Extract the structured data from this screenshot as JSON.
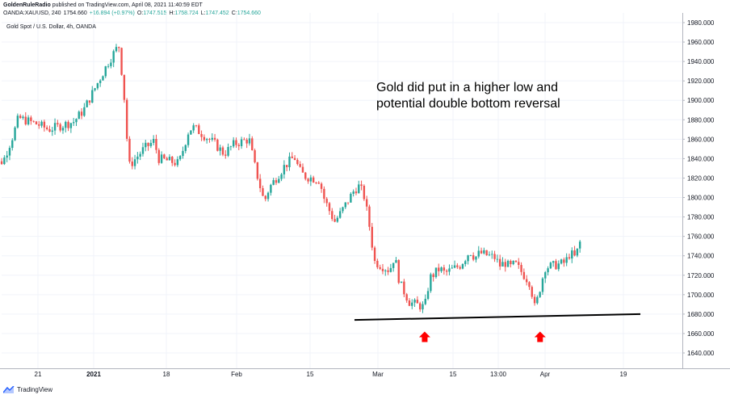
{
  "header": {
    "publisher": "GoldenRuleRadio",
    "published_text": "published on TradingView.com, April 08, 2021 11:40:59 EDT",
    "symbol": "OANDA:XAUUSD, 240",
    "last": "1754.660",
    "change": "+16.894 (+0.97%)",
    "o_label": "O:",
    "o_value": "1747.515",
    "h_label": "H:",
    "h_value": "1758.724",
    "l_label": "L:",
    "l_value": "1747.452",
    "c_label": "C:",
    "c_value": "1754.660"
  },
  "legend_name": "Gold Spot / U.S. Dollar, 4h, OANDA",
  "annotation": {
    "line1": "Gold did put in a higher low and",
    "line2": "potential double bottom reversal"
  },
  "footer": {
    "brand": "TradingView"
  },
  "colors": {
    "up": "#26a69a",
    "down": "#ef5350",
    "arrow": "#ff0000",
    "grid": "#f0f3fa",
    "axis_text": "#131722"
  },
  "chart_data": {
    "type": "candlestick",
    "ylim": [
      1634,
      1988
    ],
    "y_ticks": [
      1640,
      1660,
      1680,
      1700,
      1720,
      1740,
      1760,
      1780,
      1800,
      1820,
      1840,
      1860,
      1880,
      1900,
      1920,
      1940,
      1960,
      1980
    ],
    "y_tick_labels": [
      "1640.000",
      "1660.000",
      "1680.000",
      "1700.000",
      "1720.000",
      "1740.000",
      "1760.000",
      "1780.000",
      "1800.000",
      "1820.000",
      "1840.000",
      "1860.000",
      "1880.000",
      "1900.000",
      "1920.000",
      "1940.000",
      "1960.000",
      "1980.000"
    ],
    "x_tick_labels": [
      "21",
      "2021",
      "18",
      "Feb",
      "15",
      "Mar",
      "15",
      "13:00",
      "Apr",
      "19"
    ],
    "x_tick_bold": [
      false,
      true,
      false,
      false,
      false,
      false,
      false,
      false,
      false,
      false
    ],
    "close_path": [
      [
        "2020-12-11",
        1830
      ],
      [
        "2020-12-14",
        1838
      ],
      [
        "2020-12-16",
        1865
      ],
      [
        "2020-12-17",
        1882
      ],
      [
        "2020-12-21",
        1875
      ],
      [
        "2020-12-23",
        1870
      ],
      [
        "2020-12-28",
        1878
      ],
      [
        "2020-12-30",
        1890
      ],
      [
        "2021-01-04",
        1940
      ],
      [
        "2021-01-06",
        1957
      ],
      [
        "2021-01-07",
        1910
      ],
      [
        "2021-01-08",
        1832
      ],
      [
        "2021-01-11",
        1850
      ],
      [
        "2021-01-13",
        1858
      ],
      [
        "2021-01-14",
        1840
      ],
      [
        "2021-01-18",
        1835
      ],
      [
        "2021-01-20",
        1870
      ],
      [
        "2021-01-21",
        1872
      ],
      [
        "2021-01-25",
        1856
      ],
      [
        "2021-01-27",
        1845
      ],
      [
        "2021-01-29",
        1855
      ],
      [
        "2021-02-01",
        1860
      ],
      [
        "2021-02-02",
        1835
      ],
      [
        "2021-02-04",
        1795
      ],
      [
        "2021-02-05",
        1810
      ],
      [
        "2021-02-08",
        1832
      ],
      [
        "2021-02-10",
        1842
      ],
      [
        "2021-02-11",
        1828
      ],
      [
        "2021-02-12",
        1822
      ],
      [
        "2021-02-15",
        1818
      ],
      [
        "2021-02-16",
        1798
      ],
      [
        "2021-02-18",
        1775
      ],
      [
        "2021-02-19",
        1782
      ],
      [
        "2021-02-22",
        1808
      ],
      [
        "2021-02-23",
        1812
      ],
      [
        "2021-02-24",
        1800
      ],
      [
        "2021-02-25",
        1770
      ],
      [
        "2021-02-26",
        1734
      ],
      [
        "2021-03-01",
        1725
      ],
      [
        "2021-03-02",
        1740
      ],
      [
        "2021-03-03",
        1712
      ],
      [
        "2021-03-04",
        1702
      ],
      [
        "2021-03-05",
        1692
      ],
      [
        "2021-03-08",
        1687
      ],
      [
        "2021-03-09",
        1717
      ],
      [
        "2021-03-10",
        1722
      ],
      [
        "2021-03-11",
        1727
      ],
      [
        "2021-03-12",
        1722
      ],
      [
        "2021-03-15",
        1730
      ],
      [
        "2021-03-16",
        1737
      ],
      [
        "2021-03-17",
        1745
      ],
      [
        "2021-03-18",
        1738
      ],
      [
        "2021-03-19",
        1743
      ],
      [
        "2021-03-22",
        1738
      ],
      [
        "2021-03-23",
        1730
      ],
      [
        "2021-03-24",
        1733
      ],
      [
        "2021-03-25",
        1728
      ],
      [
        "2021-03-26",
        1732
      ],
      [
        "2021-03-29",
        1712
      ],
      [
        "2021-03-30",
        1685
      ],
      [
        "2021-03-31",
        1707
      ],
      [
        "2021-04-01",
        1728
      ],
      [
        "2021-04-02",
        1729
      ],
      [
        "2021-04-05",
        1733
      ],
      [
        "2021-04-06",
        1743
      ],
      [
        "2021-04-07",
        1738
      ],
      [
        "2021-04-08",
        1754.66
      ]
    ],
    "support_line": [
      [
        "2021-02-22",
        1674
      ],
      [
        "2021-04-20",
        1680
      ]
    ],
    "arrows": [
      [
        "2021-03-08",
        1672
      ],
      [
        "2021-03-31",
        1672
      ]
    ]
  }
}
